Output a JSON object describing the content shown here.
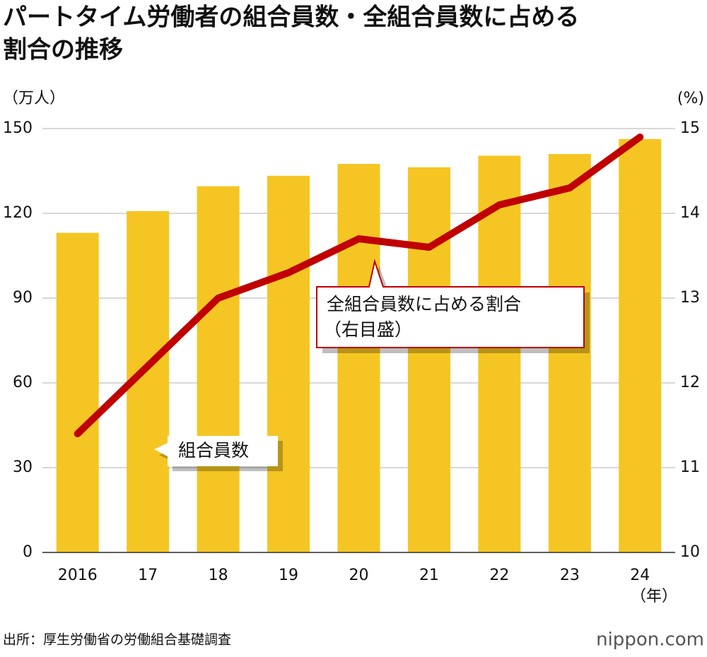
{
  "chart_data": {
    "type": "bar-line",
    "title": [
      "パートタイム労働者の組合員数・全組合員数に占める",
      "割合の推移"
    ],
    "ylabel": "（万人）",
    "y2label": "(%)",
    "xunit": "（年）",
    "categories": [
      "2016",
      "17",
      "18",
      "19",
      "20",
      "21",
      "22",
      "23",
      "24"
    ],
    "series": [
      {
        "name": "組合員数",
        "type": "bar",
        "color": "#f5c623",
        "values": [
          113.1,
          120.8,
          129.6,
          133.3,
          137.5,
          136.3,
          140.4,
          141.0,
          146.3
        ]
      },
      {
        "name": "全組合員数に占める割合",
        "type": "line",
        "axis": "y2",
        "color": "#c00000",
        "values": [
          11.4,
          12.2,
          13.0,
          13.3,
          13.7,
          13.6,
          14.1,
          14.3,
          14.9
        ]
      }
    ],
    "ylim": [
      0,
      150
    ],
    "yticks": [
      0,
      30,
      60,
      90,
      120,
      150
    ],
    "y2lim": [
      10,
      15
    ],
    "y2ticks": [
      10,
      11,
      12,
      13,
      14,
      15
    ],
    "grid": true,
    "annotations": [
      "全組合員数に占める割合",
      "（右目盛）"
    ],
    "source": "出所：厚生労働省の労働組合基礎調査",
    "logo": "nippon.com"
  }
}
